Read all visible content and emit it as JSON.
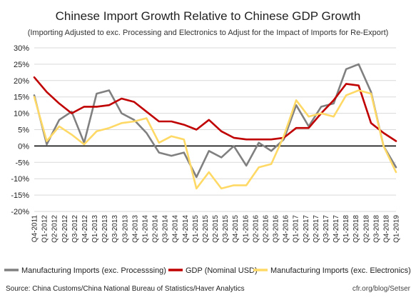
{
  "chart_data": {
    "type": "line",
    "title": "Chinese Import Growth Relative to Chinese GDP Growth",
    "subtitle": "(Importing Adjusted to exc. Processing and Electronics to Adjust for the Impact of Imports for Re-Export)",
    "xlabel": "",
    "ylabel": "",
    "ylim": [
      -20,
      30
    ],
    "y_ticks": [
      30,
      25,
      20,
      15,
      10,
      5,
      0,
      -5,
      -10,
      -15,
      -20
    ],
    "y_tick_labels": [
      "30%",
      "25%",
      "20%",
      "15%",
      "10%",
      "5%",
      "0%",
      "-5%",
      "-10%",
      "-15%",
      "-20%"
    ],
    "grid": "horizontal",
    "legend_position": "bottom",
    "categories": [
      "Q4-2011",
      "Q1-2012",
      "Q2-2012",
      "Q3-2012",
      "Q4-2012",
      "Q1-2013",
      "Q2-2013",
      "Q3-2013",
      "Q4-2013",
      "Q1-2014",
      "Q2-2014",
      "Q3-2014",
      "Q4-2014",
      "Q1-2015",
      "Q2-2015",
      "Q3-2015",
      "Q4-2015",
      "Q1-2016",
      "Q2-2016",
      "Q3-2016",
      "Q4-2016",
      "Q1-2017",
      "Q2-2017",
      "Q3-2017",
      "Q4-2017",
      "Q1-2018",
      "Q2-2018",
      "Q3-2018",
      "Q4-2018",
      "Q1-2019"
    ],
    "x_tick_labels": [
      "Q4-2011",
      "Q1-2012",
      "Q2-2012",
      "Q2-2012",
      "Q3-2012",
      "Q4-2012",
      "Q1-2013",
      "Q2-2013",
      "Q3-2013",
      "Q3-2013",
      "Q4-2013",
      "Q1-2014",
      "Q2-2014",
      "Q3-2014",
      "Q4-2014",
      "Q4-2014",
      "Q1-2015",
      "Q2-2015",
      "Q2-2015",
      "Q3-2015",
      "Q4-2015",
      "Q1-2016",
      "Q2-2016",
      "Q2-2016",
      "Q3-2016",
      "Q4-2016",
      "Q1-2017",
      "Q2-2017",
      "Q2-2017",
      "Q3-2017",
      "Q4-2017",
      "Q1-2018",
      "Q2-2018",
      "Q2-2018",
      "Q3-2018",
      "Q4-2018",
      "Q1-2019"
    ],
    "series": [
      {
        "name": "Manufacturing Imports (exc. Processsing)",
        "color": "#808080",
        "values": [
          15.5,
          0.5,
          8,
          10.5,
          1,
          16,
          17,
          10,
          8,
          4,
          -2,
          -3,
          -2,
          -9.5,
          -1.5,
          -3.5,
          0,
          -6,
          1,
          -1.5,
          2,
          12.5,
          6,
          12,
          13,
          23.5,
          25,
          16.5,
          0,
          -6.5
        ]
      },
      {
        "name": "GDP (Nominal USD)",
        "color": "#c00000",
        "values": [
          21,
          16.5,
          13,
          10,
          12,
          12,
          12.5,
          14.5,
          13.5,
          10.5,
          7.5,
          7.5,
          6.5,
          5,
          8,
          4.5,
          2.5,
          2,
          2,
          2,
          2.5,
          5.5,
          5.5,
          10,
          14,
          19,
          18.5,
          7,
          4,
          1.5
        ]
      },
      {
        "name": "Manufacturing Imports (exc. Electronics)",
        "color": "#ffd966",
        "values": [
          15,
          1.5,
          6,
          3.5,
          0.5,
          4.5,
          5.5,
          7,
          7.5,
          8.5,
          1,
          3,
          2,
          -13,
          -8,
          -13,
          -12,
          -12,
          -6.5,
          -5.5,
          3,
          14,
          9,
          10,
          9,
          15.5,
          17,
          16,
          0,
          -8
        ]
      }
    ],
    "source": "Source: China Customs/China National Bureau of Statistics/Haver Analytics",
    "credit": "cfr.org/blog/Setser"
  }
}
